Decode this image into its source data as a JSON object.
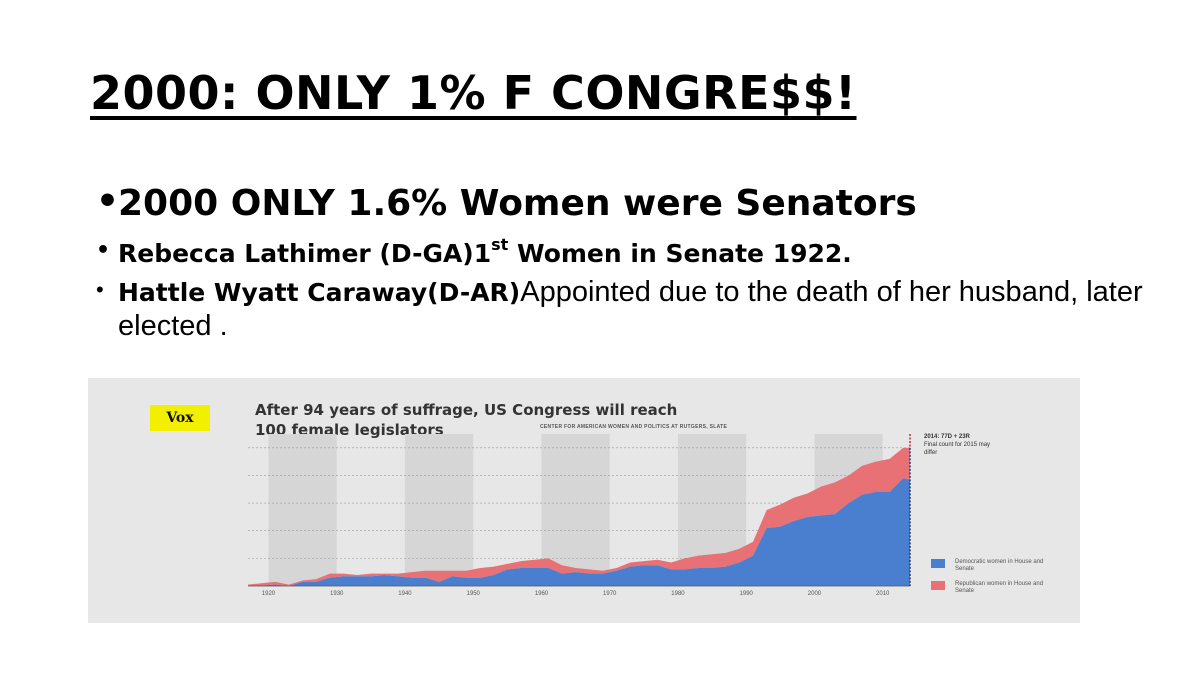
{
  "slide": {
    "title": "2000: ONLY 1% F  CONGRE$$!",
    "bullets": [
      {
        "text": "2000 ONLY 1.6% Women were Senators"
      },
      {
        "text_before": "Rebecca Lathimer (D-GA)1",
        "superscript": "st",
        "text_after": " Women in Senate 1922."
      },
      {
        "strong": "Hattle Wyatt Caraway(D-AR)",
        "text": "Appointed due to the death of her husband, later elected ."
      }
    ]
  },
  "chart": {
    "logo": "Vox",
    "title_line1": "After 94 years of suffrage, US Congress will reach",
    "title_line2": "100 female legislators",
    "source": "CENTER FOR AMERICAN WOMEN AND POLITICS AT RUTGERS, SLATE",
    "annotation_head": "2014: 77D + 23R",
    "annotation_body": "Final count for 2015 may differ",
    "colors": {
      "democratic": "#4a7fcf",
      "republican": "#e87175",
      "background": "#e7e7e7",
      "band": "#d6d6d6"
    }
  },
  "chart_data": {
    "type": "area",
    "stacked": true,
    "title": "After 94 years of suffrage, US Congress will reach 100 female legislators",
    "xlim": [
      1917,
      2014
    ],
    "ylim": [
      0,
      110
    ],
    "xticks": [
      "1920",
      "1930",
      "1940",
      "1950",
      "1960",
      "1970",
      "1980",
      "1990",
      "2000",
      "2010"
    ],
    "grid": true,
    "legend_position": "right",
    "x": [
      1917,
      1921,
      1923,
      1925,
      1927,
      1929,
      1931,
      1933,
      1935,
      1937,
      1939,
      1941,
      1943,
      1945,
      1947,
      1949,
      1951,
      1953,
      1955,
      1957,
      1959,
      1961,
      1963,
      1965,
      1967,
      1969,
      1971,
      1973,
      1975,
      1977,
      1979,
      1981,
      1983,
      1985,
      1987,
      1989,
      1991,
      1993,
      1995,
      1997,
      1999,
      2001,
      2003,
      2005,
      2007,
      2009,
      2011,
      2013,
      2014
    ],
    "series": [
      {
        "name": "Democratic women in House and Senate",
        "color": "#4a7fcf",
        "values": [
          0,
          1,
          0,
          3,
          3,
          6,
          7,
          7,
          7,
          8,
          7,
          6,
          6,
          3,
          7,
          6,
          6,
          8,
          12,
          13,
          13,
          13,
          9,
          10,
          9,
          9,
          11,
          14,
          15,
          15,
          12,
          12,
          13,
          13,
          14,
          17,
          22,
          42,
          43,
          47,
          50,
          51,
          52,
          60,
          66,
          68,
          68,
          78,
          77
        ]
      },
      {
        "name": "Republican women in House and Senate",
        "color": "#e87175",
        "values": [
          1,
          2,
          1,
          1,
          2,
          3,
          2,
          1,
          2,
          1,
          2,
          4,
          5,
          8,
          4,
          5,
          7,
          6,
          4,
          5,
          6,
          7,
          6,
          3,
          3,
          2,
          2,
          3,
          3,
          4,
          5,
          8,
          9,
          10,
          10,
          10,
          10,
          13,
          16,
          17,
          17,
          21,
          23,
          20,
          21,
          22,
          24,
          22,
          23
        ]
      }
    ]
  }
}
